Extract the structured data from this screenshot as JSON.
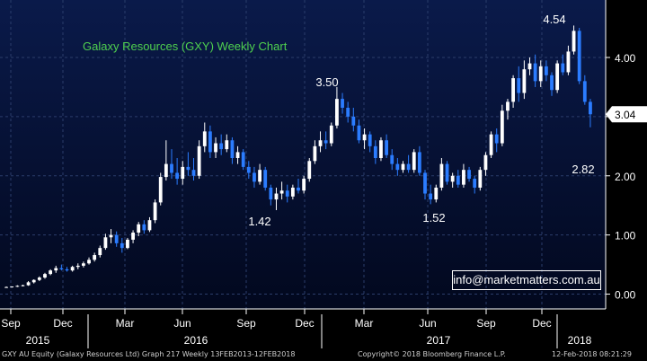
{
  "footer": {
    "left": "GXY AU Equity (Galaxy Resources Ltd) Graph 217  Weekly 13FEB2013-12FEB2018",
    "center": "Copyright© 2018 Bloomberg Finance L.P.",
    "right": "12-Feb-2018 08:21:29"
  },
  "email": "info@marketmatters.com.au",
  "colors": {
    "up": "#ffffff",
    "down": "#2b7cff",
    "title": "#4fd04f",
    "grid": "#2b3d6b",
    "last_tag_bg": "#ffffff"
  },
  "chart_data": {
    "type": "candlestick",
    "title": "Galaxy Resources (GXY) Weekly Chart",
    "ylim": [
      -0.25,
      4.85
    ],
    "y_ticks": [
      "0.00",
      "1.00",
      "2.00",
      "3.00",
      "4.00"
    ],
    "last_price": "3.04",
    "x_month_labels": [
      "Sep",
      "Dec",
      "Mar",
      "Jun",
      "Sep",
      "Dec",
      "Mar",
      "Jun",
      "Sep",
      "Dec"
    ],
    "x_year_labels": [
      "2015",
      "2016",
      "2017",
      "2018"
    ],
    "annotations": [
      {
        "text": "1.42",
        "value": 1.42
      },
      {
        "text": "3.50",
        "value": 3.5
      },
      {
        "text": "1.52",
        "value": 1.52
      },
      {
        "text": "4.54",
        "value": 4.54
      },
      {
        "text": "2.82",
        "value": 2.82
      }
    ],
    "candles": [
      [
        0.12,
        0.13,
        0.11,
        0.12
      ],
      [
        0.12,
        0.13,
        0.11,
        0.13
      ],
      [
        0.13,
        0.15,
        0.12,
        0.14
      ],
      [
        0.14,
        0.16,
        0.13,
        0.15
      ],
      [
        0.15,
        0.22,
        0.14,
        0.2
      ],
      [
        0.2,
        0.25,
        0.18,
        0.24
      ],
      [
        0.24,
        0.3,
        0.22,
        0.28
      ],
      [
        0.28,
        0.36,
        0.26,
        0.34
      ],
      [
        0.34,
        0.42,
        0.32,
        0.4
      ],
      [
        0.4,
        0.48,
        0.36,
        0.44
      ],
      [
        0.44,
        0.5,
        0.4,
        0.42
      ],
      [
        0.42,
        0.46,
        0.38,
        0.4
      ],
      [
        0.4,
        0.48,
        0.38,
        0.46
      ],
      [
        0.46,
        0.52,
        0.42,
        0.48
      ],
      [
        0.48,
        0.55,
        0.45,
        0.52
      ],
      [
        0.52,
        0.62,
        0.5,
        0.58
      ],
      [
        0.58,
        0.7,
        0.55,
        0.66
      ],
      [
        0.66,
        0.82,
        0.62,
        0.78
      ],
      [
        0.78,
        1.02,
        0.75,
        0.96
      ],
      [
        0.96,
        1.1,
        0.86,
        1.0
      ],
      [
        1.0,
        1.06,
        0.8,
        0.86
      ],
      [
        0.86,
        0.95,
        0.7,
        0.78
      ],
      [
        0.78,
        0.95,
        0.76,
        0.92
      ],
      [
        0.92,
        1.08,
        0.86,
        1.04
      ],
      [
        1.04,
        1.22,
        0.98,
        1.18
      ],
      [
        1.18,
        1.25,
        1.02,
        1.08
      ],
      [
        1.08,
        1.3,
        1.05,
        1.25
      ],
      [
        1.25,
        1.6,
        1.2,
        1.55
      ],
      [
        1.55,
        2.05,
        1.5,
        1.98
      ],
      [
        1.98,
        2.6,
        1.92,
        2.2
      ],
      [
        2.2,
        2.45,
        1.95,
        2.05
      ],
      [
        2.05,
        2.3,
        1.85,
        1.95
      ],
      [
        1.95,
        2.25,
        1.85,
        2.15
      ],
      [
        2.15,
        2.4,
        2.0,
        2.1
      ],
      [
        2.1,
        2.3,
        1.92,
        2.0
      ],
      [
        2.0,
        2.6,
        1.95,
        2.5
      ],
      [
        2.5,
        2.9,
        2.4,
        2.75
      ],
      [
        2.75,
        2.85,
        2.3,
        2.4
      ],
      [
        2.4,
        2.65,
        2.3,
        2.55
      ],
      [
        2.55,
        2.7,
        2.35,
        2.45
      ],
      [
        2.45,
        2.7,
        2.4,
        2.6
      ],
      [
        2.6,
        2.65,
        2.2,
        2.3
      ],
      [
        2.3,
        2.5,
        2.2,
        2.4
      ],
      [
        2.4,
        2.45,
        2.1,
        2.15
      ],
      [
        2.15,
        2.25,
        1.95,
        2.05
      ],
      [
        2.05,
        2.15,
        1.8,
        1.9
      ],
      [
        1.9,
        2.2,
        1.85,
        2.1
      ],
      [
        2.1,
        2.15,
        1.75,
        1.8
      ],
      [
        1.8,
        1.85,
        1.5,
        1.6
      ],
      [
        1.6,
        1.8,
        1.42,
        1.7
      ],
      [
        1.7,
        1.9,
        1.6,
        1.75
      ],
      [
        1.75,
        1.85,
        1.55,
        1.65
      ],
      [
        1.65,
        1.85,
        1.6,
        1.8
      ],
      [
        1.8,
        1.95,
        1.7,
        1.75
      ],
      [
        1.75,
        2.0,
        1.7,
        1.95
      ],
      [
        1.95,
        2.3,
        1.9,
        2.25
      ],
      [
        2.25,
        2.6,
        2.2,
        2.5
      ],
      [
        2.5,
        2.75,
        2.4,
        2.6
      ],
      [
        2.6,
        2.75,
        2.45,
        2.55
      ],
      [
        2.55,
        2.9,
        2.5,
        2.85
      ],
      [
        2.85,
        3.5,
        2.8,
        3.3
      ],
      [
        3.3,
        3.4,
        3.05,
        3.15
      ],
      [
        3.15,
        3.25,
        2.9,
        3.0
      ],
      [
        3.0,
        3.15,
        2.75,
        2.85
      ],
      [
        2.85,
        2.95,
        2.55,
        2.6
      ],
      [
        2.6,
        2.8,
        2.45,
        2.7
      ],
      [
        2.7,
        2.75,
        2.4,
        2.5
      ],
      [
        2.5,
        2.6,
        2.2,
        2.3
      ],
      [
        2.3,
        2.65,
        2.25,
        2.6
      ],
      [
        2.6,
        2.7,
        2.3,
        2.35
      ],
      [
        2.35,
        2.45,
        2.1,
        2.2
      ],
      [
        2.2,
        2.3,
        2.0,
        2.1
      ],
      [
        2.1,
        2.25,
        2.05,
        2.2
      ],
      [
        2.2,
        2.35,
        2.05,
        2.1
      ],
      [
        2.1,
        2.45,
        2.05,
        2.4
      ],
      [
        2.4,
        2.5,
        2.0,
        2.05
      ],
      [
        2.05,
        2.1,
        1.6,
        1.7
      ],
      [
        1.7,
        1.85,
        1.52,
        1.6
      ],
      [
        1.6,
        1.85,
        1.55,
        1.8
      ],
      [
        1.8,
        2.3,
        1.75,
        2.2
      ],
      [
        2.2,
        2.25,
        1.85,
        1.9
      ],
      [
        1.9,
        2.05,
        1.8,
        2.0
      ],
      [
        2.0,
        2.1,
        1.8,
        1.85
      ],
      [
        1.85,
        2.2,
        1.8,
        2.1
      ],
      [
        2.1,
        2.15,
        1.9,
        1.95
      ],
      [
        1.95,
        2.0,
        1.7,
        1.8
      ],
      [
        1.8,
        2.15,
        1.75,
        2.1
      ],
      [
        2.1,
        2.4,
        2.0,
        2.35
      ],
      [
        2.35,
        2.75,
        2.3,
        2.7
      ],
      [
        2.7,
        2.8,
        2.4,
        2.55
      ],
      [
        2.55,
        3.2,
        2.5,
        3.1
      ],
      [
        3.1,
        3.3,
        2.95,
        3.25
      ],
      [
        3.25,
        3.7,
        3.15,
        3.65
      ],
      [
        3.65,
        3.85,
        3.25,
        3.4
      ],
      [
        3.4,
        3.95,
        3.3,
        3.8
      ],
      [
        3.8,
        4.0,
        3.7,
        3.9
      ],
      [
        3.9,
        4.05,
        3.5,
        3.6
      ],
      [
        3.6,
        3.95,
        3.5,
        3.85
      ],
      [
        3.85,
        3.95,
        3.6,
        3.7
      ],
      [
        3.7,
        3.75,
        3.35,
        3.45
      ],
      [
        3.45,
        3.95,
        3.4,
        3.9
      ],
      [
        3.9,
        4.05,
        3.7,
        3.75
      ],
      [
        3.75,
        4.2,
        3.7,
        4.1
      ],
      [
        4.1,
        4.54,
        4.05,
        4.45
      ],
      [
        4.45,
        4.5,
        3.55,
        3.6
      ],
      [
        3.6,
        3.7,
        3.2,
        3.25
      ],
      [
        3.25,
        3.3,
        2.82,
        3.04
      ]
    ]
  }
}
